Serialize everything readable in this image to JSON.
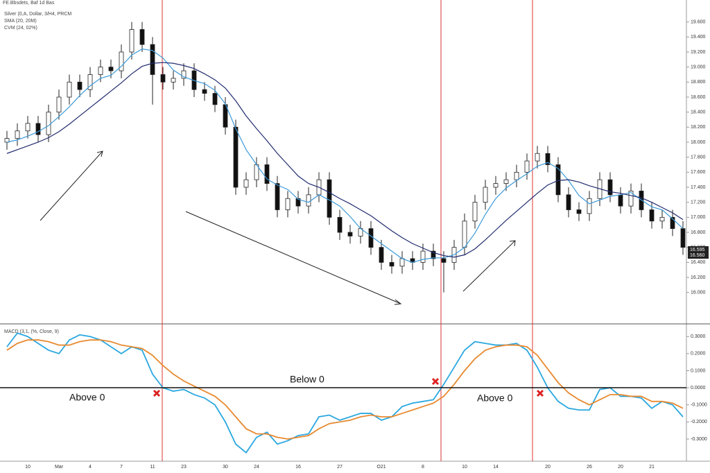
{
  "header": {
    "title": "FE.Bbsdets, Baf 1d Bas",
    "legend": [
      "Silver (0,A, Dollar, 3/H4, PRCM",
      "SMA (20, 20M)",
      "CVM (24, 02%)"
    ],
    "last_price_labels": [
      "16.595",
      "16.560"
    ]
  },
  "chart_data": [
    {
      "type": "candlestick",
      "categories": [
        null,
        null,
        "10",
        null,
        null,
        "Mar",
        null,
        null,
        "4",
        null,
        null,
        "7",
        null,
        null,
        "11",
        null,
        null,
        "23",
        null,
        null,
        null,
        "30",
        null,
        null,
        "24",
        null,
        null,
        null,
        "16",
        null,
        null,
        null,
        "27",
        null,
        null,
        null,
        "O21",
        null,
        null,
        null,
        "8",
        null,
        null,
        null,
        "10",
        null,
        null,
        "14",
        null,
        null,
        null,
        null,
        "20",
        null,
        null,
        null,
        "26",
        null,
        null,
        "20",
        null,
        null,
        "21",
        null,
        null,
        null
      ],
      "open": [
        18.0,
        18.05,
        18.15,
        18.25,
        18.1,
        18.4,
        18.6,
        18.8,
        18.7,
        18.9,
        19.0,
        18.95,
        19.2,
        19.5,
        19.3,
        18.9,
        18.8,
        18.85,
        18.95,
        18.7,
        18.65,
        18.5,
        18.2,
        17.4,
        17.5,
        17.7,
        17.45,
        17.1,
        17.25,
        17.15,
        17.3,
        17.5,
        17.0,
        16.8,
        16.75,
        16.85,
        16.6,
        16.4,
        16.35,
        16.45,
        16.4,
        16.55,
        16.45,
        16.4,
        16.6,
        16.95,
        17.2,
        17.4,
        17.45,
        17.5,
        17.6,
        17.75,
        17.85,
        17.7,
        17.3,
        17.1,
        17.05,
        17.25,
        17.5,
        17.3,
        17.15,
        17.35,
        17.1,
        16.95,
        17.0,
        16.85
      ],
      "high": [
        18.15,
        18.25,
        18.35,
        18.35,
        18.5,
        18.7,
        18.9,
        18.9,
        19.0,
        19.1,
        19.1,
        19.3,
        19.6,
        19.6,
        19.4,
        19.0,
        18.95,
        19.05,
        19.05,
        18.8,
        18.75,
        18.6,
        18.3,
        17.6,
        17.8,
        17.8,
        17.55,
        17.35,
        17.35,
        17.4,
        17.6,
        17.6,
        17.1,
        16.9,
        16.95,
        16.95,
        16.7,
        16.5,
        16.55,
        16.55,
        16.65,
        16.65,
        16.55,
        16.7,
        17.05,
        17.3,
        17.5,
        17.55,
        17.6,
        17.7,
        17.85,
        17.95,
        17.95,
        17.8,
        17.4,
        17.2,
        17.35,
        17.6,
        17.6,
        17.4,
        17.45,
        17.45,
        17.2,
        17.1,
        17.1,
        16.95
      ],
      "low": [
        17.9,
        17.95,
        18.05,
        18.0,
        18.0,
        18.3,
        18.5,
        18.6,
        18.6,
        18.8,
        18.85,
        18.85,
        19.1,
        19.2,
        18.5,
        18.7,
        18.7,
        18.75,
        18.6,
        18.55,
        18.4,
        18.1,
        17.3,
        17.3,
        17.4,
        17.35,
        17.0,
        17.0,
        17.05,
        17.05,
        17.2,
        16.9,
        16.7,
        16.65,
        16.65,
        16.5,
        16.3,
        16.25,
        16.25,
        16.3,
        16.3,
        16.35,
        16.0,
        16.3,
        16.5,
        16.85,
        17.1,
        17.3,
        17.35,
        17.4,
        17.5,
        17.65,
        17.6,
        17.2,
        17.0,
        16.95,
        16.95,
        17.15,
        17.2,
        17.05,
        17.05,
        17.0,
        16.85,
        16.85,
        16.75,
        16.5
      ],
      "close": [
        18.05,
        18.15,
        18.25,
        18.1,
        18.4,
        18.6,
        18.8,
        18.7,
        18.9,
        19.0,
        18.95,
        19.2,
        19.5,
        19.3,
        18.9,
        18.8,
        18.85,
        18.95,
        18.7,
        18.65,
        18.5,
        18.2,
        17.4,
        17.5,
        17.7,
        17.45,
        17.1,
        17.25,
        17.15,
        17.3,
        17.5,
        17.0,
        16.8,
        16.75,
        16.85,
        16.6,
        16.4,
        16.35,
        16.45,
        16.4,
        16.55,
        16.45,
        16.4,
        16.6,
        16.95,
        17.2,
        17.4,
        17.45,
        17.5,
        17.6,
        17.75,
        17.85,
        17.7,
        17.3,
        17.1,
        17.05,
        17.25,
        17.5,
        17.3,
        17.15,
        17.35,
        17.1,
        16.95,
        17.0,
        16.85,
        16.6
      ],
      "up_color": "#ffffff",
      "down_color": "#111111",
      "series": [
        {
          "color": "#3b9ad9",
          "values": [
            18.0,
            18.03,
            18.08,
            18.14,
            18.22,
            18.34,
            18.47,
            18.62,
            18.75,
            18.85,
            18.89,
            19.01,
            19.16,
            19.24,
            19.22,
            19.12,
            18.96,
            18.87,
            18.82,
            18.78,
            18.69,
            18.51,
            18.18,
            17.9,
            17.7,
            17.51,
            17.43,
            17.37,
            17.24,
            17.2,
            17.3,
            17.23,
            17.15,
            17.01,
            16.85,
            16.75,
            16.65,
            16.55,
            16.45,
            16.4,
            16.44,
            16.46,
            16.46,
            16.5,
            16.6,
            16.79,
            17.04,
            17.25,
            17.39,
            17.49,
            17.58,
            17.68,
            17.73,
            17.65,
            17.49,
            17.29,
            17.18,
            17.23,
            17.28,
            17.3,
            17.33,
            17.23,
            17.14,
            17.1,
            16.98,
            16.85
          ]
        },
        {
          "color": "#1f2a6e",
          "values": [
            17.85,
            17.9,
            17.95,
            18.0,
            18.06,
            18.14,
            18.24,
            18.35,
            18.46,
            18.57,
            18.68,
            18.79,
            18.91,
            19.01,
            19.05,
            19.06,
            19.05,
            19.02,
            18.98,
            18.91,
            18.83,
            18.72,
            18.55,
            18.35,
            18.18,
            18.02,
            17.85,
            17.7,
            17.55,
            17.45,
            17.4,
            17.33,
            17.25,
            17.18,
            17.1,
            17.02,
            16.92,
            16.82,
            16.73,
            16.65,
            16.59,
            16.53,
            16.49,
            16.47,
            16.5,
            16.58,
            16.7,
            16.83,
            16.96,
            17.08,
            17.2,
            17.32,
            17.43,
            17.49,
            17.5,
            17.47,
            17.42,
            17.38,
            17.34,
            17.32,
            17.29,
            17.26,
            17.2,
            17.13,
            17.06,
            16.97
          ]
        }
      ],
      "ylim": [
        15.6,
        19.8
      ],
      "yticks": [
        {
          "value": 19.6,
          "label": "19.600"
        },
        {
          "value": 19.4,
          "label": "19.400"
        },
        {
          "value": 19.2,
          "label": "19.200"
        },
        {
          "value": 19,
          "label": "19.000"
        },
        {
          "value": 18.8,
          "label": "18.800"
        },
        {
          "value": 18.6,
          "label": "18.600"
        },
        {
          "value": 18.4,
          "label": "18.400"
        },
        {
          "value": 18.2,
          "label": "18.200"
        },
        {
          "value": 18,
          "label": "18.000"
        },
        {
          "value": 17.8,
          "label": "17.800"
        },
        {
          "value": 17.6,
          "label": "17.600"
        },
        {
          "value": 17.4,
          "label": "17.400"
        },
        {
          "value": 17.2,
          "label": "17.200"
        },
        {
          "value": 17,
          "label": "17.000"
        },
        {
          "value": 16.8,
          "label": "16.800"
        },
        {
          "value": 16.6,
          "label": "16.600"
        },
        {
          "value": 16.4,
          "label": "16.400"
        },
        {
          "value": 16.2,
          "label": "16.200"
        },
        {
          "value": 16,
          "label": "16.000"
        }
      ]
    },
    {
      "type": "line",
      "title": "MACD (3,1, (%, Close, 9)",
      "annotations": [
        "Above 0",
        "Below 0",
        "Above 0"
      ],
      "series": [
        {
          "color": "#2aa7e0",
          "values": [
            0.24,
            0.32,
            0.3,
            0.26,
            0.22,
            0.2,
            0.28,
            0.31,
            0.3,
            0.28,
            0.24,
            0.2,
            0.24,
            0.22,
            0.08,
            0.0,
            -0.02,
            -0.01,
            -0.04,
            -0.06,
            -0.1,
            -0.2,
            -0.33,
            -0.38,
            -0.29,
            -0.26,
            -0.33,
            -0.31,
            -0.28,
            -0.27,
            -0.17,
            -0.16,
            -0.19,
            -0.17,
            -0.15,
            -0.15,
            -0.19,
            -0.17,
            -0.11,
            -0.09,
            -0.08,
            -0.07,
            0.02,
            0.12,
            0.22,
            0.27,
            0.26,
            0.25,
            0.25,
            0.26,
            0.22,
            0.12,
            0.0,
            -0.08,
            -0.12,
            -0.13,
            -0.13,
            -0.01,
            0.0,
            -0.05,
            -0.05,
            -0.06,
            -0.12,
            -0.08,
            -0.1,
            -0.17
          ]
        },
        {
          "color": "#e8892f",
          "values": [
            0.22,
            0.26,
            0.28,
            0.28,
            0.27,
            0.25,
            0.25,
            0.27,
            0.28,
            0.28,
            0.27,
            0.25,
            0.24,
            0.23,
            0.19,
            0.13,
            0.08,
            0.04,
            0.01,
            -0.02,
            -0.05,
            -0.1,
            -0.17,
            -0.24,
            -0.27,
            -0.27,
            -0.29,
            -0.3,
            -0.29,
            -0.28,
            -0.24,
            -0.21,
            -0.2,
            -0.19,
            -0.17,
            -0.16,
            -0.17,
            -0.17,
            -0.15,
            -0.13,
            -0.11,
            -0.09,
            -0.05,
            0.02,
            0.1,
            0.17,
            0.22,
            0.24,
            0.25,
            0.25,
            0.24,
            0.19,
            0.11,
            0.03,
            -0.03,
            -0.07,
            -0.1,
            -0.07,
            -0.04,
            -0.04,
            -0.05,
            -0.05,
            -0.08,
            -0.08,
            -0.09,
            -0.12
          ]
        }
      ],
      "ylim": [
        -0.43,
        0.37
      ],
      "yticks": [
        {
          "value": 0.3,
          "label": "0.3000"
        },
        {
          "value": 0.2,
          "label": "0.2000"
        },
        {
          "value": 0.1,
          "label": "0.1000"
        },
        {
          "value": 0,
          "label": "0.0000"
        },
        {
          "value": -0.1,
          "label": "-0.1000"
        },
        {
          "value": -0.2,
          "label": "-0.2000"
        },
        {
          "value": -0.3,
          "label": "-0.3000"
        }
      ]
    }
  ]
}
